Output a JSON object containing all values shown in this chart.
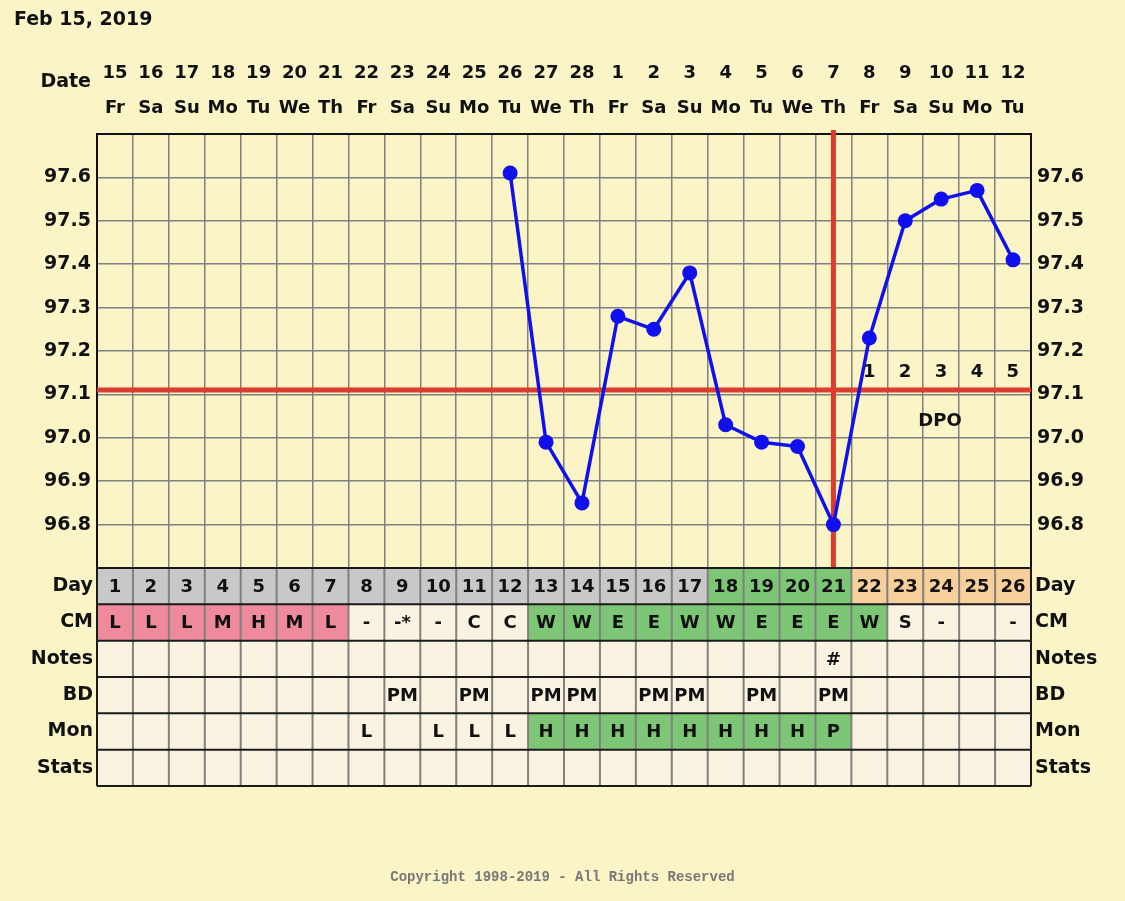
{
  "chart_data": [
    {
      "type": "line",
      "title": "Feb 15, 2019",
      "xlabel": "Date",
      "categories": [
        "15\nFr",
        "16\nSa",
        "17\nSu",
        "18\nMo",
        "19\nTu",
        "20\nWe",
        "21\nTh",
        "22\nFr",
        "23\nSa",
        "24\nSu",
        "25\nMo",
        "26\nTu",
        "27\nWe",
        "28\nTh",
        "1\nFr",
        "2\nSa",
        "3\nSu",
        "4\nMo",
        "5\nTu",
        "6\nWe",
        "7\nTh",
        "8\nFr",
        "9\nSa",
        "10\nSu",
        "11\nMo",
        "12\nTu"
      ],
      "values": [
        null,
        null,
        null,
        null,
        null,
        null,
        null,
        null,
        null,
        null,
        null,
        97.61,
        96.99,
        96.85,
        97.28,
        97.25,
        97.38,
        97.03,
        96.99,
        96.98,
        96.8,
        97.23,
        97.5,
        97.55,
        97.57,
        97.41
      ],
      "color": "#1010ee",
      "marker": "circle",
      "grid": true,
      "ylim": [
        96.7,
        97.7
      ],
      "yticks": [
        96.8,
        96.9,
        {
          "value": 97,
          "label": "97.0"
        },
        97.1,
        97.2,
        97.3,
        97.4,
        97.5,
        97.6
      ],
      "y2lim": [
        96.7,
        97.7
      ],
      "y2ticks": [
        96.8,
        96.9,
        {
          "value": 97,
          "label": "97.0"
        },
        97.1,
        97.2,
        97.3,
        97.4,
        97.5,
        97.6
      ],
      "ref_lines": [
        {
          "axis": "y",
          "value": 97.11,
          "color": "#dc3b2e"
        },
        {
          "axis": "x",
          "value": "7\nTh",
          "color": "#dc3b2e"
        }
      ],
      "annotations": [
        "1 2 3 4 5",
        "DPO"
      ]
    },
    {
      "type": "heatmap",
      "categories": [
        null,
        null,
        null,
        null,
        null,
        null,
        null,
        null,
        null,
        null,
        null,
        null,
        null,
        null,
        null,
        null,
        null,
        null,
        null,
        null,
        null,
        null,
        null,
        null,
        null,
        null
      ],
      "y_categories": [
        "Day",
        "CM",
        "Notes",
        "BD",
        "Mon",
        "Stats"
      ],
      "y2_categories": [
        "Day",
        "CM",
        "Notes",
        "BD",
        "Mon",
        "Stats"
      ],
      "cells": [
        [
          null,
          null,
          null,
          null,
          null,
          null,
          null,
          null,
          null,
          null,
          null,
          null,
          null,
          null,
          null,
          null,
          null,
          null,
          null,
          null,
          null,
          null,
          null,
          null,
          null,
          null
        ],
        [
          null,
          null,
          null,
          null,
          null,
          null,
          null,
          null,
          null,
          null,
          null,
          null,
          null,
          null,
          null,
          null,
          null,
          null,
          null,
          null,
          null,
          null,
          null,
          null,
          null,
          null
        ],
        [
          null,
          null,
          null,
          null,
          null,
          null,
          null,
          null,
          null,
          null,
          null,
          null,
          null,
          null,
          null,
          null,
          null,
          null,
          null,
          null,
          null,
          null,
          null,
          null,
          null,
          null
        ],
        [
          null,
          null,
          null,
          null,
          null,
          null,
          null,
          null,
          null,
          null,
          null,
          null,
          null,
          null,
          null,
          null,
          null,
          null,
          null,
          null,
          null,
          null,
          null,
          null,
          null,
          null
        ],
        [
          null,
          null,
          null,
          null,
          null,
          null,
          null,
          null,
          null,
          null,
          null,
          null,
          null,
          null,
          null,
          null,
          null,
          null,
          null,
          null,
          null,
          null,
          null,
          null,
          null,
          null
        ],
        [
          null,
          null,
          null,
          null,
          null,
          null,
          null,
          null,
          null,
          null,
          null,
          null,
          null,
          null,
          null,
          null,
          null,
          null,
          null,
          null,
          null,
          null,
          null,
          null,
          null,
          null
        ]
      ],
      "cell_labels": [
        [
          "1",
          "2",
          "3",
          "4",
          "5",
          "6",
          "7",
          "8",
          "9",
          "10",
          "11",
          "12",
          "13",
          "14",
          "15",
          "16",
          "17",
          "18",
          "19",
          "20",
          "21",
          "22",
          "23",
          "24",
          "25",
          "26"
        ],
        [
          "L",
          "L",
          "L",
          "M",
          "H",
          "M",
          "L",
          "-",
          "-*",
          "-",
          "C",
          "C",
          "W",
          "W",
          "E",
          "E",
          "W",
          "W",
          "E",
          "E",
          "E",
          "W",
          "S",
          "-",
          null,
          "-"
        ],
        [
          null,
          null,
          null,
          null,
          null,
          null,
          null,
          null,
          null,
          null,
          null,
          null,
          null,
          null,
          null,
          null,
          null,
          null,
          null,
          null,
          "#",
          null,
          null,
          null,
          null,
          null
        ],
        [
          null,
          null,
          null,
          null,
          null,
          null,
          null,
          null,
          "PM",
          null,
          "PM",
          null,
          "PM",
          "PM",
          null,
          "PM",
          "PM",
          null,
          "PM",
          null,
          "PM",
          null,
          null,
          null,
          null,
          null
        ],
        [
          null,
          null,
          null,
          null,
          null,
          null,
          null,
          "L",
          null,
          "L",
          "L",
          "L",
          "H",
          "H",
          "H",
          "H",
          "H",
          "H",
          "H",
          "H",
          "P",
          null,
          null,
          null,
          null,
          null
        ],
        [
          null,
          null,
          null,
          null,
          null,
          null,
          null,
          null,
          null,
          null,
          null,
          null,
          null,
          null,
          null,
          null,
          null,
          null,
          null,
          null,
          null,
          null,
          null,
          null,
          null,
          null
        ]
      ],
      "colors": [
        [
          "#c8c8c8",
          "#c8c8c8",
          "#c8c8c8",
          "#c8c8c8",
          "#c8c8c8",
          "#c8c8c8",
          "#c8c8c8",
          "#c8c8c8",
          "#c8c8c8",
          "#c8c8c8",
          "#c8c8c8",
          "#c8c8c8",
          "#c8c8c8",
          "#c8c8c8",
          "#c8c8c8",
          "#c8c8c8",
          "#c8c8c8",
          "#7dc676",
          "#7dc676",
          "#7dc676",
          "#7dc676",
          "#f6cf9b",
          "#f6cf9b",
          "#f6cf9b",
          "#f6cf9b",
          "#f6cf9b"
        ],
        [
          "#ee8a9c",
          "#ee8a9c",
          "#ee8a9c",
          "#ee8a9c",
          "#ee8a9c",
          "#ee8a9c",
          "#ee8a9c",
          "#fbf3e1",
          "#fbf3e1",
          "#fbf3e1",
          "#fbf3e1",
          "#fbf3e1",
          "#7dc676",
          "#7dc676",
          "#7dc676",
          "#7dc676",
          "#7dc676",
          "#7dc676",
          "#7dc676",
          "#7dc676",
          "#7dc676",
          "#7dc676",
          "#fbf3e1",
          "#fbf3e1",
          "#fbf3e1",
          "#fbf3e1"
        ],
        [
          "#fbf3e1",
          "#fbf3e1",
          "#fbf3e1",
          "#fbf3e1",
          "#fbf3e1",
          "#fbf3e1",
          "#fbf3e1",
          "#fbf3e1",
          "#fbf3e1",
          "#fbf3e1",
          "#fbf3e1",
          "#fbf3e1",
          "#fbf3e1",
          "#fbf3e1",
          "#fbf3e1",
          "#fbf3e1",
          "#fbf3e1",
          "#fbf3e1",
          "#fbf3e1",
          "#fbf3e1",
          "#fbf3e1",
          "#fbf3e1",
          "#fbf3e1",
          "#fbf3e1",
          "#fbf3e1",
          "#fbf3e1"
        ],
        [
          "#fbf3e1",
          "#fbf3e1",
          "#fbf3e1",
          "#fbf3e1",
          "#fbf3e1",
          "#fbf3e1",
          "#fbf3e1",
          "#fbf3e1",
          "#fbf3e1",
          "#fbf3e1",
          "#fbf3e1",
          "#fbf3e1",
          "#fbf3e1",
          "#fbf3e1",
          "#fbf3e1",
          "#fbf3e1",
          "#fbf3e1",
          "#fbf3e1",
          "#fbf3e1",
          "#fbf3e1",
          "#fbf3e1",
          "#fbf3e1",
          "#fbf3e1",
          "#fbf3e1",
          "#fbf3e1",
          "#fbf3e1"
        ],
        [
          "#fbf3e1",
          "#fbf3e1",
          "#fbf3e1",
          "#fbf3e1",
          "#fbf3e1",
          "#fbf3e1",
          "#fbf3e1",
          "#fbf3e1",
          "#fbf3e1",
          "#fbf3e1",
          "#fbf3e1",
          "#fbf3e1",
          "#7dc676",
          "#7dc676",
          "#7dc676",
          "#7dc676",
          "#7dc676",
          "#7dc676",
          "#7dc676",
          "#7dc676",
          "#7dc676",
          "#fbf3e1",
          "#fbf3e1",
          "#fbf3e1",
          "#fbf3e1",
          "#fbf3e1"
        ],
        [
          "#fbf3e1",
          "#fbf3e1",
          "#fbf3e1",
          "#fbf3e1",
          "#fbf3e1",
          "#fbf3e1",
          "#fbf3e1",
          "#fbf3e1",
          "#fbf3e1",
          "#fbf3e1",
          "#fbf3e1",
          "#fbf3e1",
          "#fbf3e1",
          "#fbf3e1",
          "#fbf3e1",
          "#fbf3e1",
          "#fbf3e1",
          "#fbf3e1",
          "#fbf3e1",
          "#fbf3e1",
          "#fbf3e1",
          "#fbf3e1",
          "#fbf3e1",
          "#fbf3e1",
          "#fbf3e1",
          "#fbf3e1"
        ]
      ],
      "annotations": [
        "Copyright 1998-2019 - All Rights Reserved"
      ]
    }
  ]
}
